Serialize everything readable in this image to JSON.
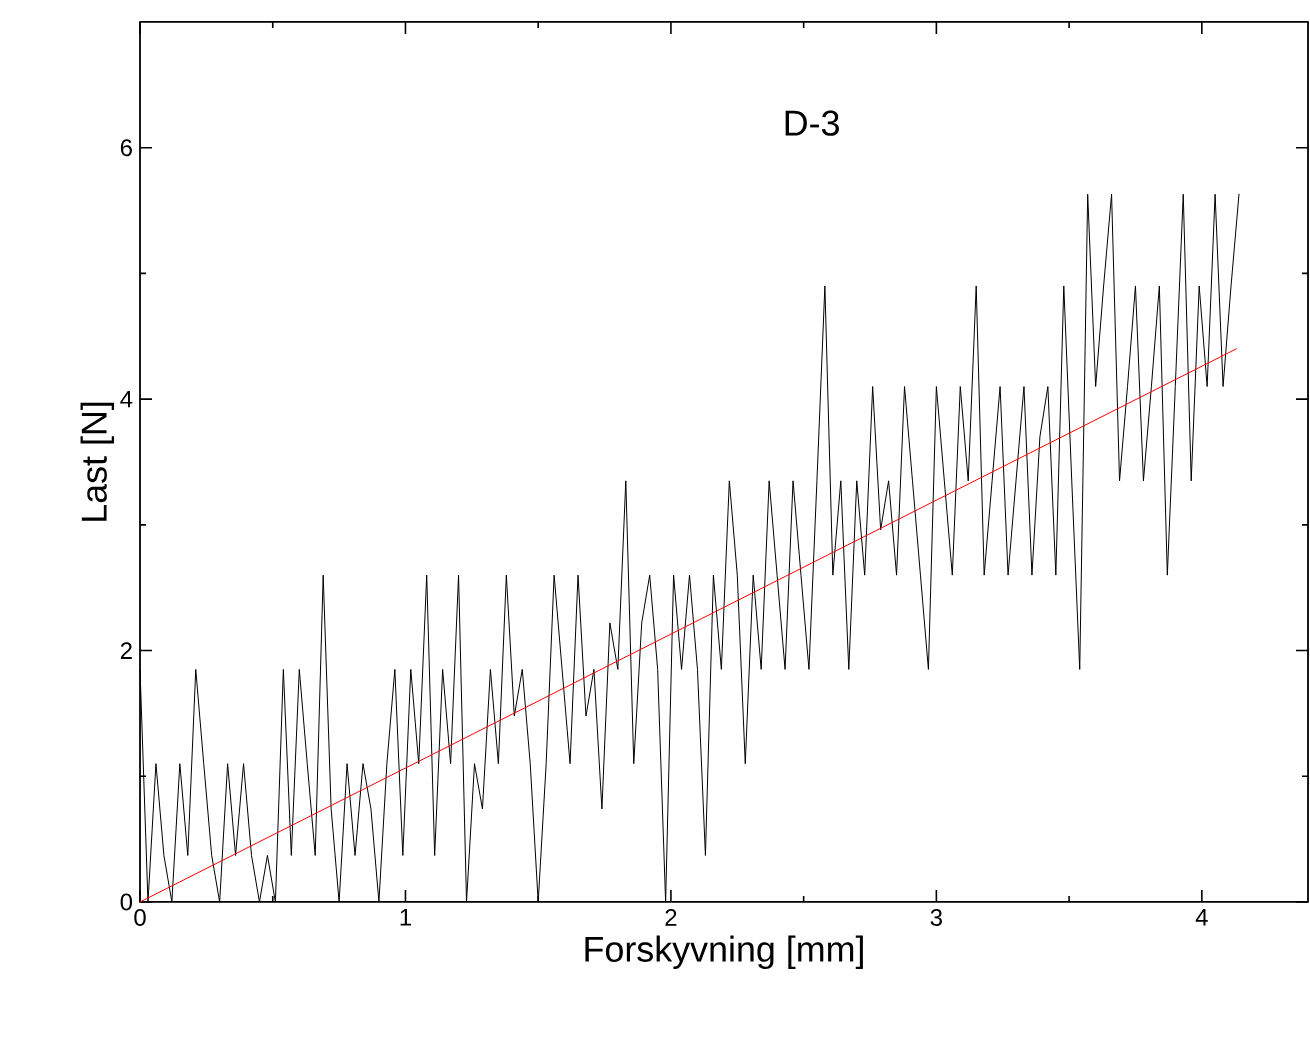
{
  "chart_data": {
    "type": "line",
    "annotations": [
      "D-3"
    ],
    "xlabel": "Forskyvning [mm]",
    "ylabel": "Last [N]",
    "xlim": [
      0,
      4.4
    ],
    "ylim": [
      0,
      7
    ],
    "xticks": [
      0,
      {
        "value": 0.5,
        "label": null
      },
      1,
      {
        "value": 1.5,
        "label": null
      },
      2,
      {
        "value": 2.5,
        "label": null
      },
      3,
      {
        "value": 3.5,
        "label": null
      },
      4
    ],
    "yticks": [
      0,
      {
        "value": 1,
        "label": null
      },
      2,
      {
        "value": 3,
        "label": null
      },
      4,
      {
        "value": 5,
        "label": null
      },
      6
    ],
    "grid": false,
    "legend": false,
    "series": [
      {
        "color": "#000000",
        "x": [
          0,
          0.03,
          0.06,
          0.09,
          0.12,
          0.15,
          0.18,
          0.21,
          0.24,
          0.27,
          0.3,
          0.33,
          0.36,
          0.39,
          0.42,
          0.45,
          0.48,
          0.51,
          0.54,
          0.57,
          0.6,
          0.63,
          0.66,
          0.69,
          0.72,
          0.75,
          0.78,
          0.81,
          0.84,
          0.87,
          0.9,
          0.93,
          0.96,
          0.99,
          1.02,
          1.05,
          1.08,
          1.11,
          1.14,
          1.17,
          1.2,
          1.23,
          1.26,
          1.29,
          1.32,
          1.35,
          1.38,
          1.41,
          1.44,
          1.47,
          1.5,
          1.53,
          1.56,
          1.59,
          1.62,
          1.65,
          1.68,
          1.71,
          1.74,
          1.77,
          1.8,
          1.83,
          1.86,
          1.89,
          1.92,
          1.95,
          1.98,
          2.01,
          2.04,
          2.07,
          2.1,
          2.13,
          2.16,
          2.19,
          2.22,
          2.25,
          2.28,
          2.31,
          2.34,
          2.37,
          2.4,
          2.43,
          2.46,
          2.49,
          2.52,
          2.55,
          2.58,
          2.61,
          2.64,
          2.67,
          2.7,
          2.73,
          2.76,
          2.79,
          2.82,
          2.85,
          2.88,
          2.91,
          2.94,
          2.97,
          3.0,
          3.03,
          3.06,
          3.09,
          3.12,
          3.15,
          3.18,
          3.21,
          3.24,
          3.27,
          3.3,
          3.33,
          3.36,
          3.39,
          3.42,
          3.45,
          3.48,
          3.51,
          3.54,
          3.57,
          3.6,
          3.63,
          3.66,
          3.69,
          3.72,
          3.75,
          3.78,
          3.81,
          3.84,
          3.87,
          3.9,
          3.93,
          3.96,
          3.99,
          4.02,
          4.05,
          4.08,
          4.11,
          4.14
        ],
        "values": [
          1.85,
          0,
          1.1,
          0.37,
          0,
          1.1,
          0.37,
          1.85,
          1.1,
          0.37,
          0,
          1.1,
          0.37,
          1.1,
          0.37,
          0,
          0.37,
          0,
          1.85,
          0.37,
          1.85,
          1.1,
          0.37,
          2.6,
          0.74,
          0,
          1.1,
          0.37,
          1.1,
          0.74,
          0,
          1.1,
          1.85,
          0.37,
          1.85,
          1.1,
          2.6,
          0.37,
          1.85,
          1.1,
          2.6,
          0,
          1.1,
          0.74,
          1.85,
          1.1,
          2.6,
          1.48,
          1.85,
          1.1,
          0,
          1.1,
          2.6,
          1.85,
          1.1,
          2.6,
          1.48,
          1.85,
          0.74,
          2.22,
          1.85,
          3.35,
          1.1,
          2.22,
          2.6,
          1.85,
          0,
          2.6,
          1.85,
          2.6,
          1.85,
          0.37,
          2.6,
          1.85,
          3.35,
          2.6,
          1.1,
          2.6,
          1.85,
          3.35,
          2.6,
          1.85,
          3.35,
          2.6,
          1.85,
          3.35,
          4.9,
          2.6,
          3.35,
          1.85,
          3.35,
          2.6,
          4.1,
          2.96,
          3.35,
          2.6,
          4.1,
          3.35,
          2.6,
          1.85,
          4.1,
          3.35,
          2.6,
          4.1,
          3.35,
          4.9,
          2.6,
          3.35,
          4.1,
          2.6,
          3.35,
          4.1,
          2.6,
          3.7,
          4.1,
          2.6,
          4.9,
          3.35,
          1.85,
          5.63,
          4.1,
          4.9,
          5.63,
          3.35,
          4.1,
          4.9,
          3.35,
          4.1,
          4.9,
          2.6,
          4.1,
          5.63,
          3.35,
          4.9,
          4.1,
          5.63,
          4.1,
          4.9,
          5.63
        ]
      },
      {
        "color": "#ff0000",
        "x": [
          0,
          4.13
        ],
        "values": [
          0,
          4.4
        ]
      }
    ]
  }
}
